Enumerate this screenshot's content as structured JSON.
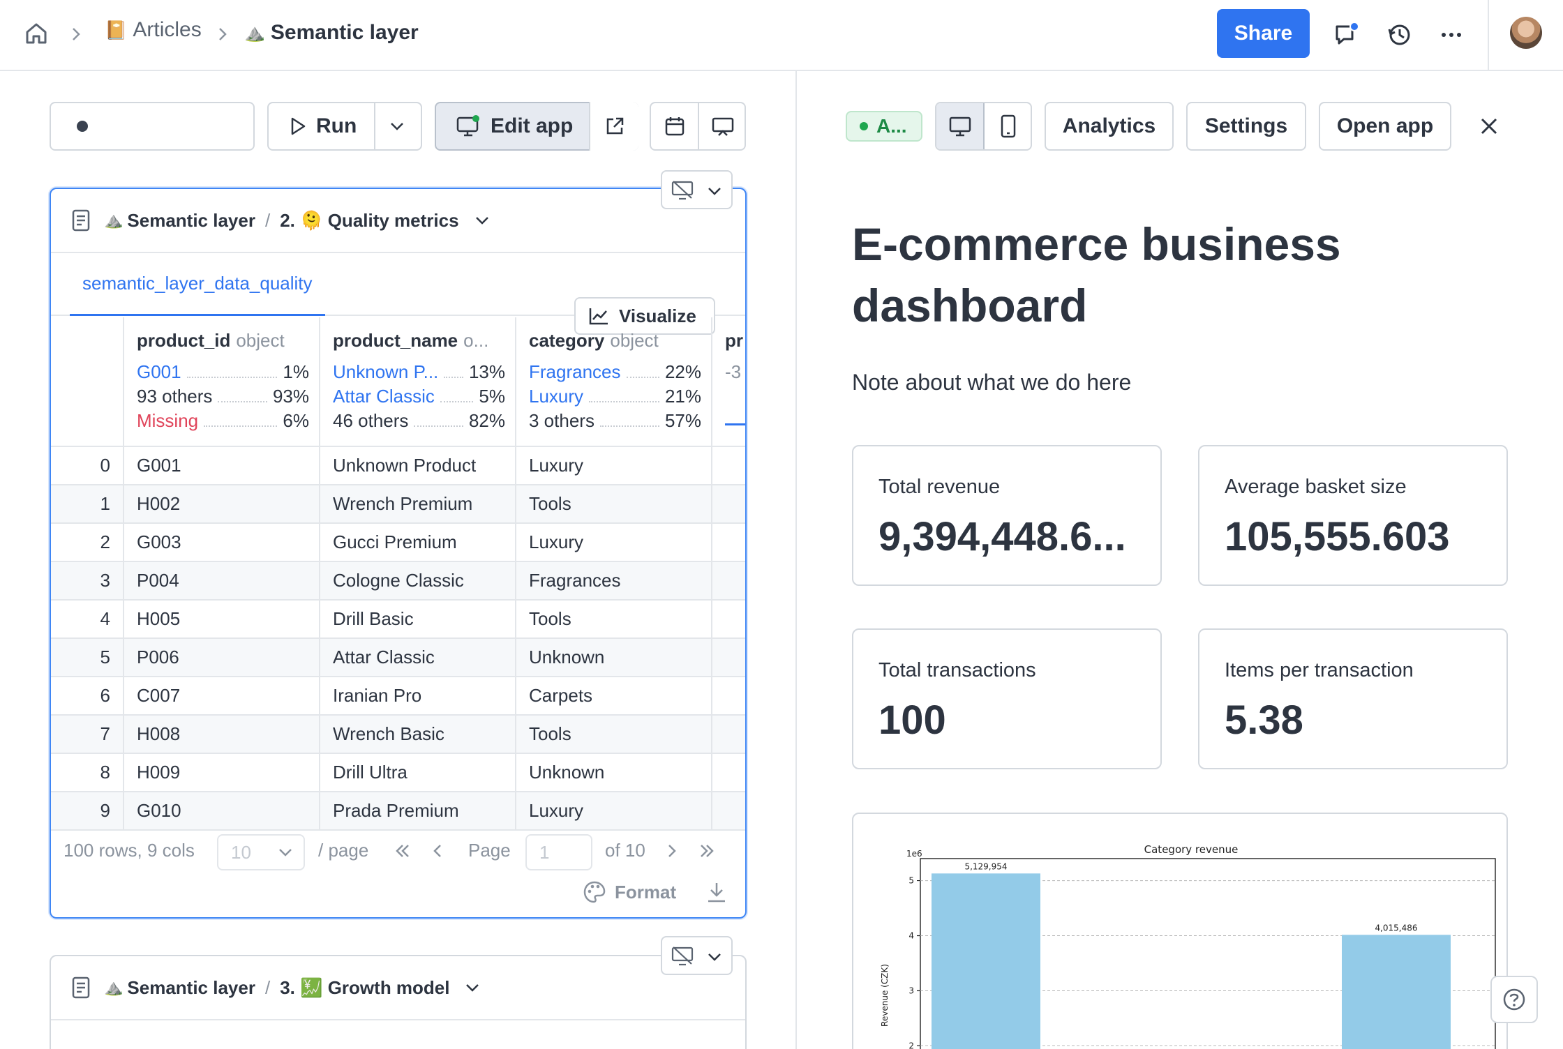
{
  "breadcrumb": {
    "articles_emoji": "📔",
    "articles_label": "Articles",
    "page_emoji": "⛰️",
    "page_label": "Semantic layer"
  },
  "header": {
    "share_label": "Share"
  },
  "toolbar": {
    "run_label": "Run",
    "edit_app_label": "Edit app"
  },
  "cell1": {
    "notebook_emoji": "⛰️",
    "notebook": "Semantic layer",
    "separator": "/",
    "section": "2. 🫠 Quality metrics",
    "tab": "semantic_layer_data_quality",
    "visualize_label": "Visualize",
    "columns": [
      {
        "name": "product_id",
        "type": "object",
        "stats": [
          {
            "value": "G001",
            "pct": "1%",
            "kind": "link"
          },
          {
            "value": "93 others",
            "pct": "93%",
            "kind": "plain"
          },
          {
            "value": "Missing",
            "pct": "6%",
            "kind": "miss"
          }
        ]
      },
      {
        "name": "product_name",
        "type": "o...",
        "stats": [
          {
            "value": "Unknown P...",
            "pct": "13%",
            "kind": "link"
          },
          {
            "value": "Attar Classic",
            "pct": "5%",
            "kind": "link"
          },
          {
            "value": "46 others",
            "pct": "82%",
            "kind": "plain"
          }
        ]
      },
      {
        "name": "category",
        "type": "object",
        "stats": [
          {
            "value": "Fragrances",
            "pct": "22%",
            "kind": "link"
          },
          {
            "value": "Luxury",
            "pct": "21%",
            "kind": "link"
          },
          {
            "value": "3 others",
            "pct": "57%",
            "kind": "plain"
          }
        ]
      },
      {
        "name": "pr",
        "type": "",
        "stats": [
          {
            "value": "-3",
            "pct": "",
            "kind": "plain"
          }
        ]
      }
    ],
    "rows": [
      [
        "0",
        "G001",
        "Unknown Product",
        "Luxury"
      ],
      [
        "1",
        "H002",
        "Wrench Premium",
        "Tools"
      ],
      [
        "2",
        "G003",
        "Gucci Premium",
        "Luxury"
      ],
      [
        "3",
        "P004",
        "Cologne Classic",
        "Fragrances"
      ],
      [
        "4",
        "H005",
        "Drill Basic",
        "Tools"
      ],
      [
        "5",
        "P006",
        "Attar Classic",
        "Unknown"
      ],
      [
        "6",
        "C007",
        "Iranian Pro",
        "Carpets"
      ],
      [
        "7",
        "H008",
        "Wrench Basic",
        "Tools"
      ],
      [
        "8",
        "H009",
        "Drill Ultra",
        "Unknown"
      ],
      [
        "9",
        "G010",
        "Prada Premium",
        "Luxury"
      ]
    ],
    "pager": {
      "summary": "100 rows, 9 cols",
      "page_size": "10",
      "per_page": "/ page",
      "page_label": "Page",
      "page_value": "1",
      "of_label": "of 10",
      "format_label": "Format"
    }
  },
  "cell2": {
    "notebook_emoji": "⛰️",
    "notebook": "Semantic layer",
    "separator": "/",
    "section": "3. 💹 Growth model"
  },
  "app": {
    "status_label": "A...",
    "analytics_label": "Analytics",
    "settings_label": "Settings",
    "open_app_label": "Open app",
    "title": "E-commerce business dashboard",
    "note": "Note about what we do here",
    "kpis": [
      {
        "label": "Total revenue",
        "value": "9,394,448.6..."
      },
      {
        "label": "Average basket size",
        "value": "105,555.603"
      },
      {
        "label": "Total transactions",
        "value": "100"
      },
      {
        "label": "Items per transaction",
        "value": "5.38"
      }
    ]
  },
  "chart_data": {
    "type": "bar",
    "title": "Category revenue",
    "ylabel": "Revenue (CZK)",
    "y_multiplier": "1e6",
    "yticks": [
      "5",
      "4",
      "3",
      "2"
    ],
    "ylim": [
      1.6,
      5.4
    ],
    "grid": true,
    "values": [
      5129954,
      4015486
    ],
    "value_labels": [
      "5,129,954",
      "4,015,486"
    ],
    "bar_color": "#93cbe8"
  },
  "colors": {
    "accent": "#2f74f0",
    "missing": "#e0445a",
    "status_green": "#1fa64f"
  }
}
